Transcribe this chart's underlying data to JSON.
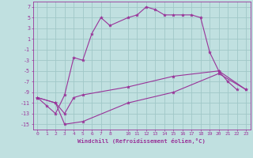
{
  "background_color": "#c0e0e0",
  "grid_color": "#a0c8c8",
  "line_color": "#993399",
  "ylim": [
    -16,
    8
  ],
  "xlim": [
    -0.5,
    23.5
  ],
  "yticks": [
    7,
    5,
    3,
    1,
    -1,
    -3,
    -5,
    -7,
    -9,
    -11,
    -13,
    -15
  ],
  "xticks": [
    0,
    1,
    2,
    3,
    4,
    5,
    6,
    7,
    8,
    10,
    11,
    12,
    13,
    14,
    15,
    16,
    17,
    18,
    19,
    20,
    21,
    22,
    23
  ],
  "xlabel": "Windchill (Refroidissement éolien,°C)",
  "series": [
    {
      "x": [
        0,
        1,
        2,
        3,
        4,
        5,
        6,
        7,
        8,
        10,
        11,
        12,
        13,
        14,
        15,
        16,
        17,
        18,
        19,
        20,
        21,
        22
      ],
      "y": [
        -10,
        -11.5,
        -13,
        -9.5,
        -2.5,
        -3,
        2,
        5,
        3.5,
        5,
        5.5,
        7,
        6.5,
        5.5,
        5.5,
        5.5,
        5.5,
        5,
        -1.5,
        -5,
        -7,
        -8.5
      ]
    },
    {
      "x": [
        0,
        2,
        3,
        4,
        5,
        10,
        15,
        20,
        23
      ],
      "y": [
        -10,
        -11,
        -13,
        -10,
        -9.5,
        -8,
        -6,
        -5,
        -8.5
      ]
    },
    {
      "x": [
        0,
        2,
        3,
        5,
        10,
        15,
        20,
        23
      ],
      "y": [
        -10,
        -11,
        -15,
        -14.5,
        -11,
        -9,
        -5.5,
        -8.5
      ]
    }
  ]
}
